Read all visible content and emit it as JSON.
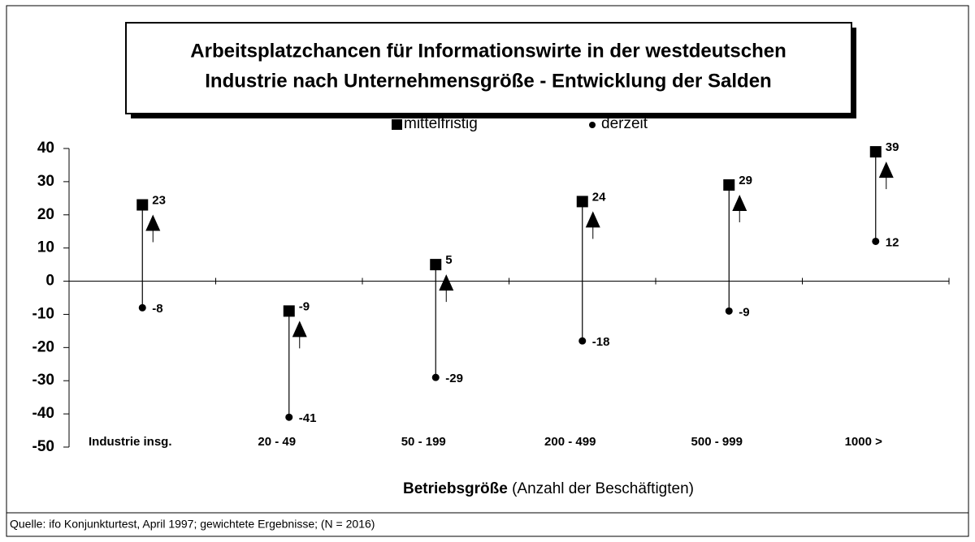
{
  "chart_data": {
    "type": "hilo",
    "title": [
      "Arbeitsplatzchancen für Informationswirte in der westdeutschen",
      "Industrie nach Unternehmensgröße - Entwicklung der Salden"
    ],
    "categories": [
      "Industrie insg.",
      "20 - 49",
      "50 - 199",
      "200 - 499",
      "500 - 999",
      "1000 >"
    ],
    "series": [
      {
        "name": "mittelfristig",
        "color": "#000000",
        "marker": "square",
        "values": [
          23,
          -9,
          5,
          24,
          29,
          39
        ]
      },
      {
        "name": "derzeit",
        "color": "#000000",
        "marker": "circle",
        "values": [
          -8,
          -41,
          -29,
          -18,
          -9,
          12
        ]
      }
    ],
    "ylim": [
      -50,
      40
    ],
    "yticks": [
      -50,
      -40,
      -30,
      -20,
      -10,
      0,
      10,
      20,
      30,
      40
    ],
    "xlabel": "Betriebsgröße",
    "xlabel_note": "(Anzahl der Beschäftigten)",
    "source": "Quelle: ifo Konjunkturtest, April 1997; gewichtete Ergebnisse; (N = 2016)"
  }
}
